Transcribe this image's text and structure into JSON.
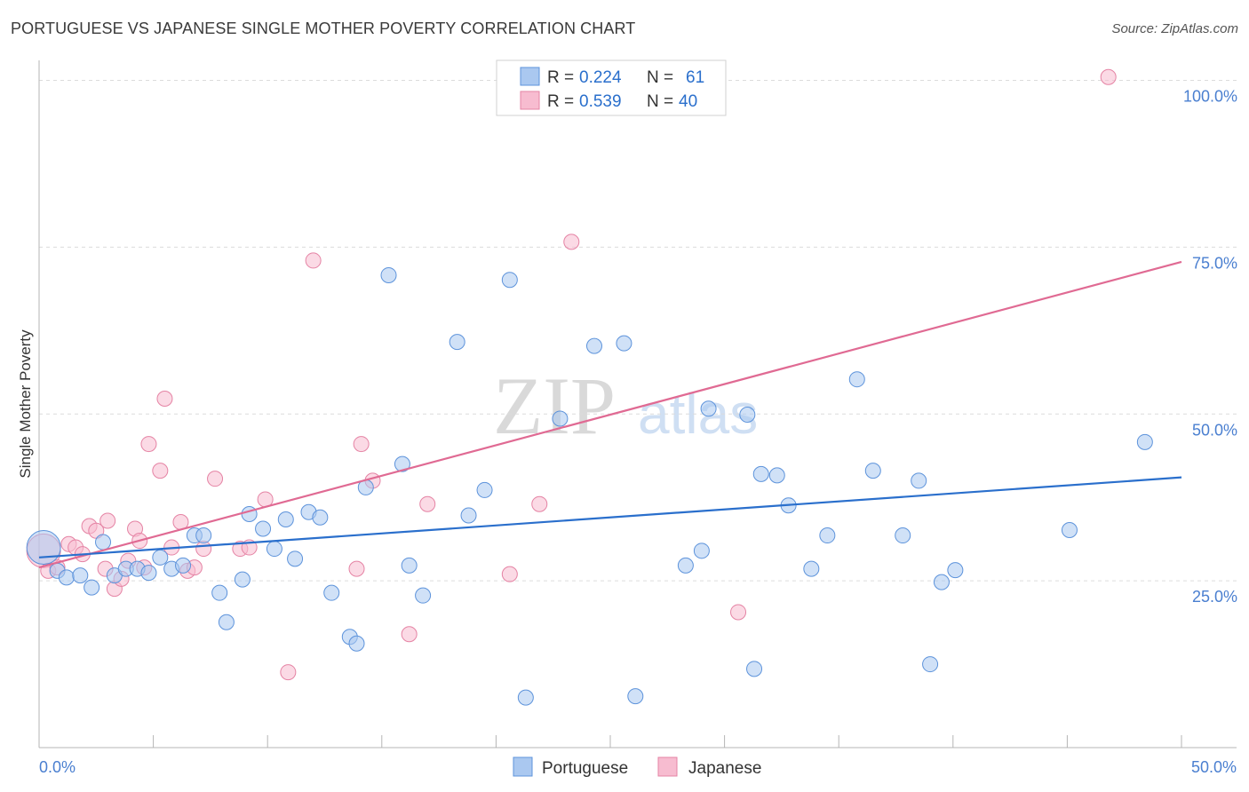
{
  "title": "PORTUGUESE VS JAPANESE SINGLE MOTHER POVERTY CORRELATION CHART",
  "source": "Source: ZipAtlas.com",
  "colors": {
    "portuguese_fill": "#aac8f0",
    "portuguese_stroke": "#5d93db",
    "portuguese_line": "#2a6fcc",
    "japanese_fill": "#f7bcd0",
    "japanese_stroke": "#e583a4",
    "japanese_line": "#e06a93",
    "blue_text": "#2a6fcc"
  },
  "legend": {
    "rows": [
      {
        "r_label": "R = ",
        "r_value": "0.224",
        "n_label": "N = ",
        "n_value": "61"
      },
      {
        "r_label": "R = ",
        "r_value": "0.539",
        "n_label": "N = ",
        "n_value": "40"
      }
    ]
  },
  "bottom_legend": {
    "items": [
      "Portuguese",
      "Japanese"
    ]
  },
  "watermark": {
    "zip": "ZIP",
    "atlas": "atlas"
  },
  "chart_data": {
    "type": "scatter",
    "title": "PORTUGUESE VS JAPANESE SINGLE MOTHER POVERTY CORRELATION CHART",
    "xlabel": "",
    "ylabel": "Single Mother Poverty",
    "xlim": [
      0,
      50
    ],
    "ylim": [
      0,
      102
    ],
    "x_tick_labels": [
      "0.0%",
      "50.0%"
    ],
    "y_ticks": [
      25,
      50,
      75,
      100
    ],
    "y_tick_labels": [
      "25.0%",
      "50.0%",
      "75.0%",
      "100.0%"
    ],
    "grid": true,
    "series": [
      {
        "name": "Portuguese",
        "R": 0.224,
        "N": 61,
        "trend": {
          "x": [
            0,
            50
          ],
          "y": [
            28.5,
            40.5
          ]
        },
        "points": [
          {
            "x": 0.2,
            "y": 30.0,
            "big": true
          },
          {
            "x": 0.8,
            "y": 26.5
          },
          {
            "x": 1.2,
            "y": 25.5
          },
          {
            "x": 1.8,
            "y": 25.8
          },
          {
            "x": 2.3,
            "y": 24.0
          },
          {
            "x": 2.8,
            "y": 30.8
          },
          {
            "x": 3.3,
            "y": 25.8
          },
          {
            "x": 3.8,
            "y": 26.8
          },
          {
            "x": 4.3,
            "y": 26.8
          },
          {
            "x": 4.8,
            "y": 26.2
          },
          {
            "x": 5.3,
            "y": 28.5
          },
          {
            "x": 5.8,
            "y": 26.8
          },
          {
            "x": 6.3,
            "y": 27.3
          },
          {
            "x": 6.8,
            "y": 31.8
          },
          {
            "x": 7.2,
            "y": 31.8
          },
          {
            "x": 7.9,
            "y": 23.2
          },
          {
            "x": 8.2,
            "y": 18.8
          },
          {
            "x": 8.9,
            "y": 25.2
          },
          {
            "x": 9.2,
            "y": 35.0
          },
          {
            "x": 9.8,
            "y": 32.8
          },
          {
            "x": 10.3,
            "y": 29.8
          },
          {
            "x": 10.8,
            "y": 34.2
          },
          {
            "x": 11.2,
            "y": 28.3
          },
          {
            "x": 11.8,
            "y": 35.3
          },
          {
            "x": 12.3,
            "y": 34.5
          },
          {
            "x": 12.8,
            "y": 23.2
          },
          {
            "x": 13.6,
            "y": 16.6
          },
          {
            "x": 13.9,
            "y": 15.6
          },
          {
            "x": 14.3,
            "y": 39.0
          },
          {
            "x": 15.3,
            "y": 70.8
          },
          {
            "x": 15.9,
            "y": 42.5
          },
          {
            "x": 16.2,
            "y": 27.3
          },
          {
            "x": 16.8,
            "y": 22.8
          },
          {
            "x": 18.3,
            "y": 60.8
          },
          {
            "x": 18.8,
            "y": 34.8
          },
          {
            "x": 19.5,
            "y": 38.6
          },
          {
            "x": 20.6,
            "y": 70.1
          },
          {
            "x": 21.3,
            "y": 7.5
          },
          {
            "x": 22.8,
            "y": 49.3
          },
          {
            "x": 24.3,
            "y": 60.2
          },
          {
            "x": 25.6,
            "y": 60.6
          },
          {
            "x": 26.1,
            "y": 7.7
          },
          {
            "x": 28.3,
            "y": 27.3
          },
          {
            "x": 29.0,
            "y": 29.5
          },
          {
            "x": 29.3,
            "y": 50.8
          },
          {
            "x": 31.3,
            "y": 11.8
          },
          {
            "x": 31.6,
            "y": 41.0
          },
          {
            "x": 32.3,
            "y": 40.8
          },
          {
            "x": 31.0,
            "y": 49.9
          },
          {
            "x": 32.8,
            "y": 36.3
          },
          {
            "x": 33.8,
            "y": 26.8
          },
          {
            "x": 34.5,
            "y": 31.8
          },
          {
            "x": 35.8,
            "y": 55.2
          },
          {
            "x": 36.5,
            "y": 41.5
          },
          {
            "x": 37.8,
            "y": 31.8
          },
          {
            "x": 38.5,
            "y": 40.0
          },
          {
            "x": 39.0,
            "y": 12.5
          },
          {
            "x": 39.5,
            "y": 24.8
          },
          {
            "x": 40.1,
            "y": 26.6
          },
          {
            "x": 45.1,
            "y": 32.6
          },
          {
            "x": 48.4,
            "y": 45.8
          }
        ]
      },
      {
        "name": "Japanese",
        "R": 0.539,
        "N": 40,
        "trend": {
          "x": [
            0,
            50
          ],
          "y": [
            27.0,
            72.8
          ]
        },
        "points": [
          {
            "x": 0.2,
            "y": 29.5,
            "big": true
          },
          {
            "x": 0.4,
            "y": 26.5
          },
          {
            "x": 0.8,
            "y": 27.0
          },
          {
            "x": 1.3,
            "y": 30.5
          },
          {
            "x": 1.6,
            "y": 30.0
          },
          {
            "x": 1.9,
            "y": 29.0
          },
          {
            "x": 2.2,
            "y": 33.2
          },
          {
            "x": 2.5,
            "y": 32.5
          },
          {
            "x": 2.9,
            "y": 26.8
          },
          {
            "x": 3.0,
            "y": 34.0
          },
          {
            "x": 3.3,
            "y": 23.8
          },
          {
            "x": 3.6,
            "y": 25.3
          },
          {
            "x": 3.9,
            "y": 28.0
          },
          {
            "x": 4.2,
            "y": 32.8
          },
          {
            "x": 4.4,
            "y": 31.0
          },
          {
            "x": 4.6,
            "y": 27.0
          },
          {
            "x": 4.8,
            "y": 45.5
          },
          {
            "x": 5.3,
            "y": 41.5
          },
          {
            "x": 5.5,
            "y": 52.3
          },
          {
            "x": 5.8,
            "y": 30.0
          },
          {
            "x": 6.2,
            "y": 33.8
          },
          {
            "x": 6.5,
            "y": 26.5
          },
          {
            "x": 6.8,
            "y": 27.0
          },
          {
            "x": 7.2,
            "y": 29.8
          },
          {
            "x": 7.7,
            "y": 40.3
          },
          {
            "x": 8.8,
            "y": 29.8
          },
          {
            "x": 9.2,
            "y": 30.0
          },
          {
            "x": 9.9,
            "y": 37.2
          },
          {
            "x": 10.9,
            "y": 11.3
          },
          {
            "x": 12.0,
            "y": 73.0
          },
          {
            "x": 13.9,
            "y": 26.8
          },
          {
            "x": 14.1,
            "y": 45.5
          },
          {
            "x": 14.6,
            "y": 40.0
          },
          {
            "x": 16.2,
            "y": 17.0
          },
          {
            "x": 17.0,
            "y": 36.5
          },
          {
            "x": 20.6,
            "y": 26.0
          },
          {
            "x": 21.9,
            "y": 36.5
          },
          {
            "x": 23.3,
            "y": 75.8
          },
          {
            "x": 30.6,
            "y": 20.3
          },
          {
            "x": 46.8,
            "y": 100.5
          }
        ]
      }
    ]
  }
}
